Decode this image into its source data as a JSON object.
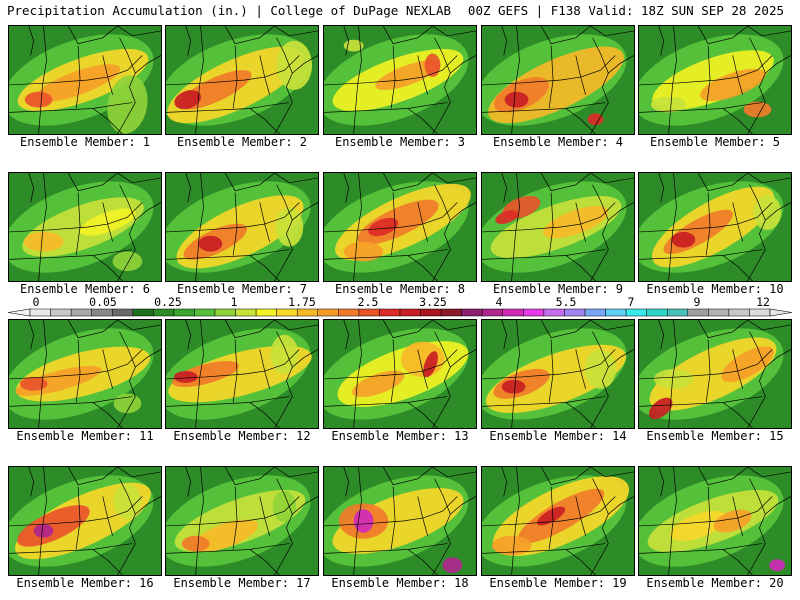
{
  "header": {
    "left": "Precipitation Accumulation (in.) | College of DuPage NEXLAB",
    "right": "00Z GEFS | F138 Valid: 18Z SUN SEP 28 2025"
  },
  "colors": {
    "background": "#ffffff",
    "map_base": "#2d8c27",
    "boundaries": "#000000"
  },
  "colorbar": {
    "tick_labels": [
      "0",
      "0.05",
      "0.25",
      "1",
      "1.75",
      "2.5",
      "3.25",
      "4",
      "5.5",
      "7",
      "9",
      "12"
    ],
    "colors": [
      "#e8e8e8",
      "#c8c8c8",
      "#a8a8a8",
      "#888888",
      "#6a6a6a",
      "#1e6e1e",
      "#2d8c27",
      "#3aa52e",
      "#55c03a",
      "#8fd23a",
      "#c8e23a",
      "#f2f224",
      "#f7d72a",
      "#f7b928",
      "#f59a28",
      "#f07b2a",
      "#e8542a",
      "#dd2b27",
      "#c81e24",
      "#a8171f",
      "#8a1a2a",
      "#8f1f6e",
      "#b0268e",
      "#d02ab8",
      "#e53ae6",
      "#c56ff0",
      "#9f86f2",
      "#7aa8f5",
      "#5ed0f5",
      "#39e8e8",
      "#2fd6cc",
      "#4ac0b8",
      "#9ea0a0",
      "#b2b2b2",
      "#c8c8c8",
      "#dcdcdc"
    ]
  },
  "panels": [
    {
      "label": "Ensemble Member: 1"
    },
    {
      "label": "Ensemble Member: 2"
    },
    {
      "label": "Ensemble Member: 3"
    },
    {
      "label": "Ensemble Member: 4"
    },
    {
      "label": "Ensemble Member: 5"
    },
    {
      "label": "Ensemble Member: 6"
    },
    {
      "label": "Ensemble Member: 7"
    },
    {
      "label": "Ensemble Member: 8"
    },
    {
      "label": "Ensemble Member: 9"
    },
    {
      "label": "Ensemble Member: 10"
    },
    {
      "label": "Ensemble Member: 11"
    },
    {
      "label": "Ensemble Member: 12"
    },
    {
      "label": "Ensemble Member: 13"
    },
    {
      "label": "Ensemble Member: 14"
    },
    {
      "label": "Ensemble Member: 15"
    },
    {
      "label": "Ensemble Member: 16"
    },
    {
      "label": "Ensemble Member: 17"
    },
    {
      "label": "Ensemble Member: 18"
    },
    {
      "label": "Ensemble Member: 19"
    },
    {
      "label": "Ensemble Member: 20"
    }
  ]
}
